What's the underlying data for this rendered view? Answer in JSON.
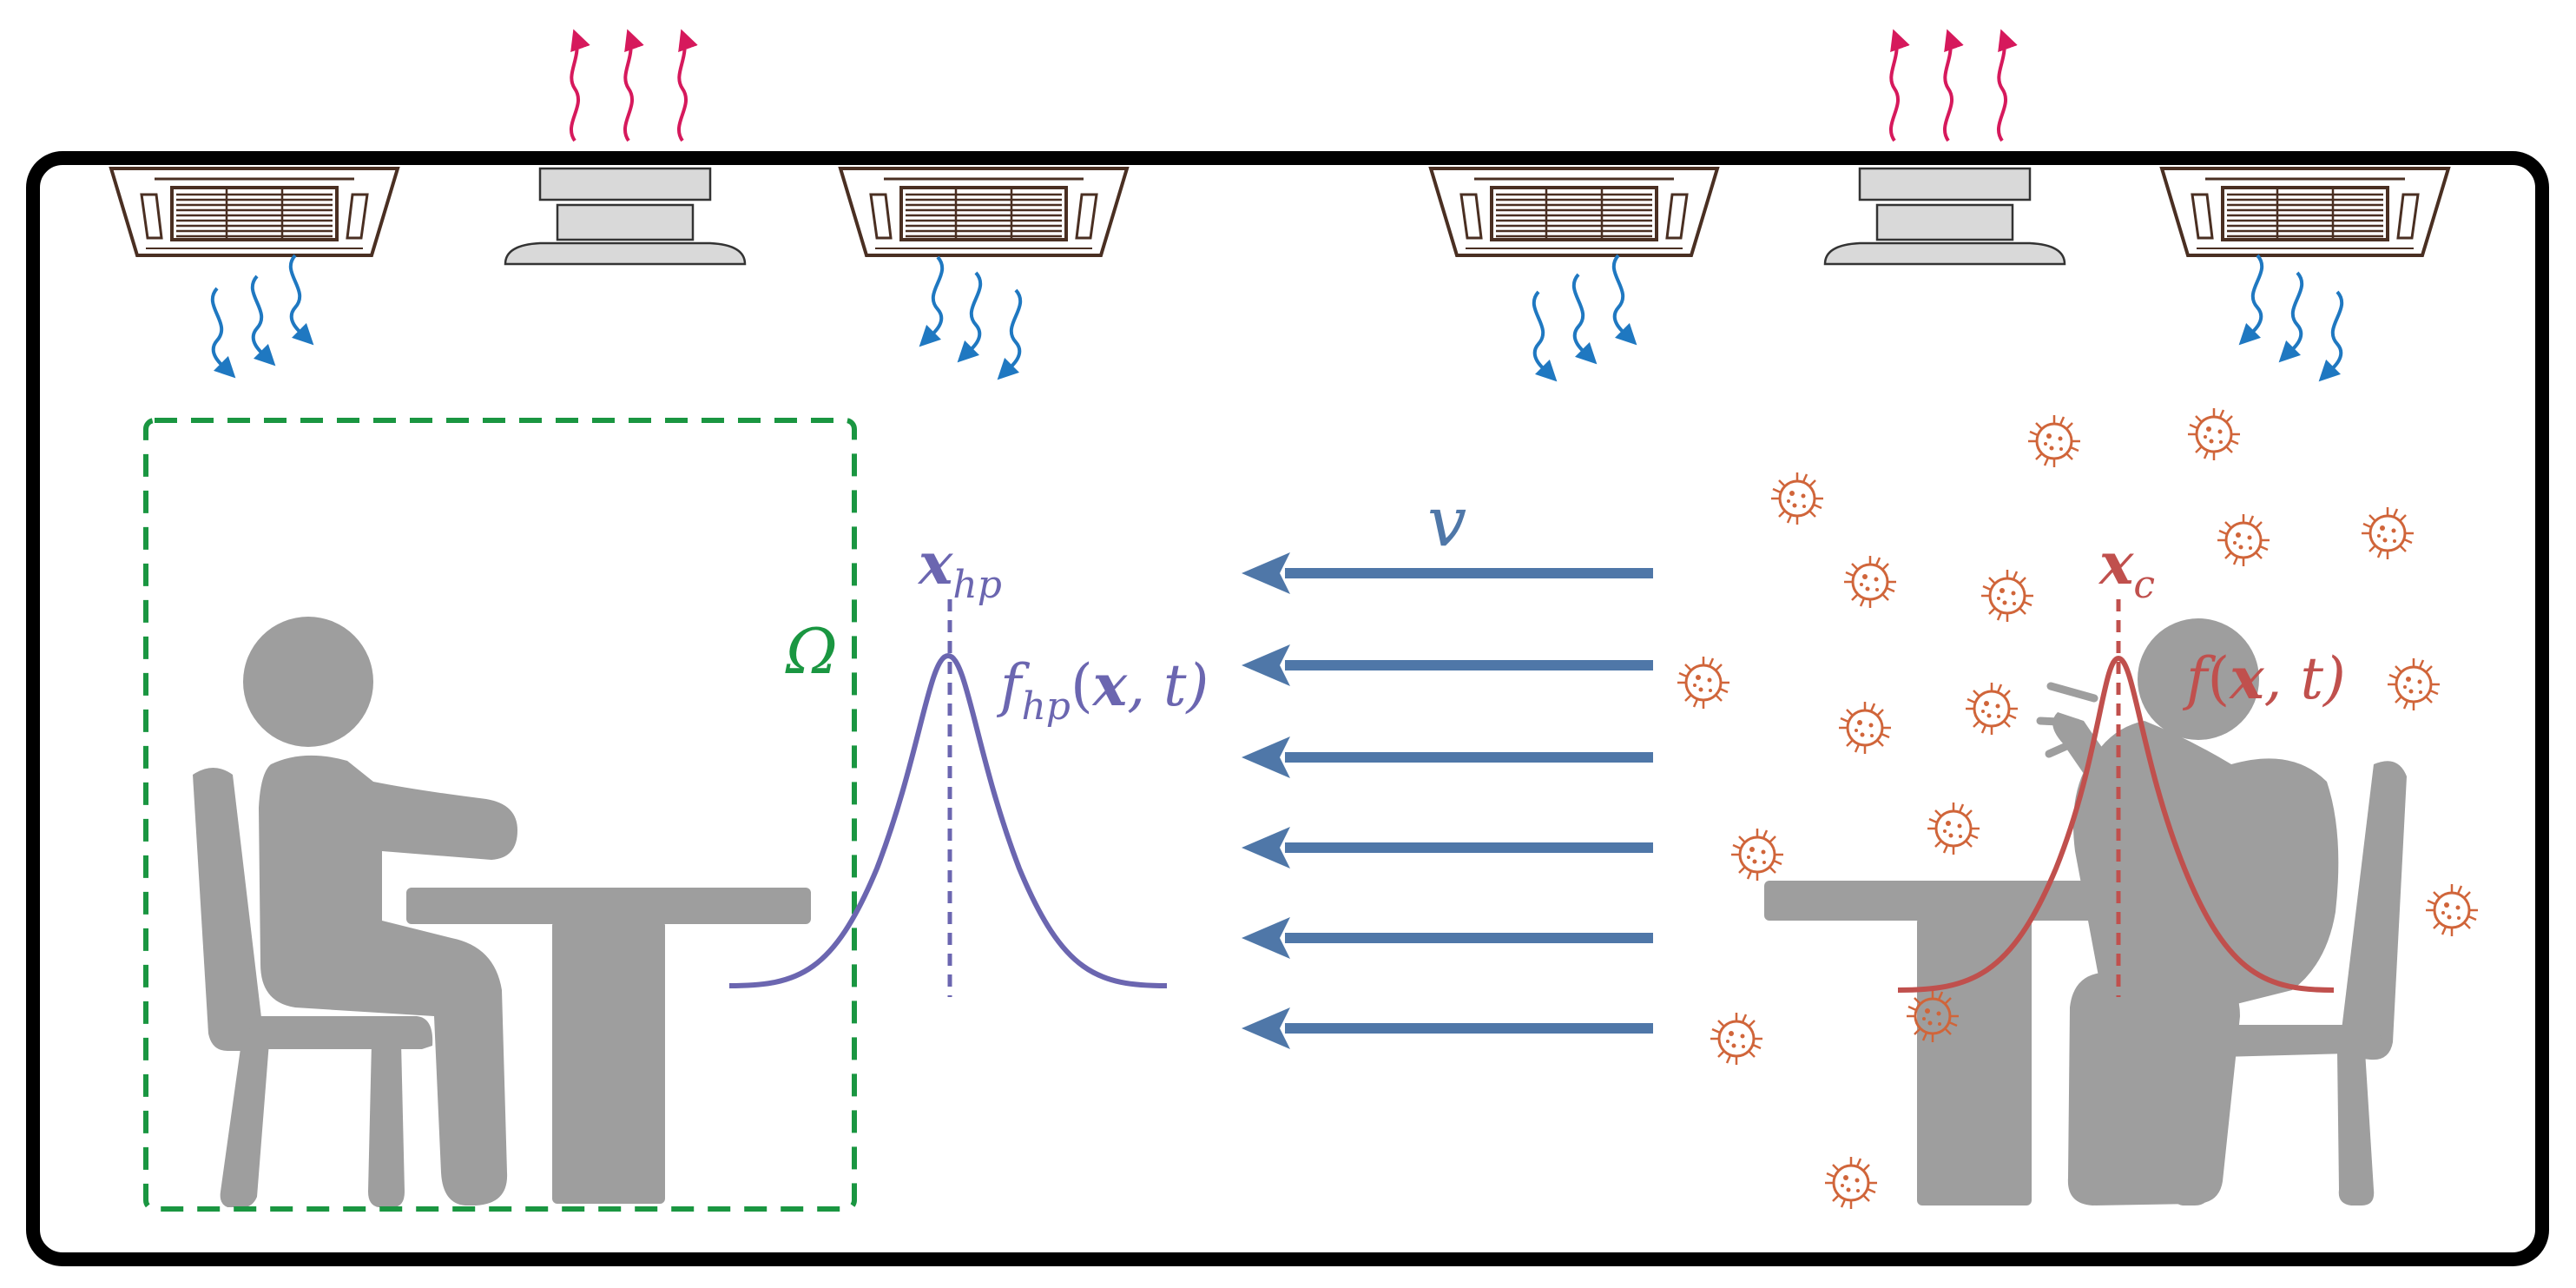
{
  "labels": {
    "omega": "Ω",
    "velocity": "v",
    "x_hp_base": "x",
    "x_hp_sub": "hp",
    "f_hp_base": "f",
    "f_hp_sub": "hp",
    "f_hp_args_open": "(",
    "f_hp_args_x": "x",
    "f_hp_args_rest": ", t)",
    "x_c_base": "x",
    "x_c_sub": "c",
    "f_c_base": "f",
    "f_c_args_open": "(",
    "f_c_args_x": "x",
    "f_c_args_rest": ", t)"
  },
  "colors": {
    "room_border": "#000000",
    "occupant": "#9e9e9e",
    "healthy_zone": "#1a9641",
    "healthy_curve": "#6b66b0",
    "infected_curve": "#c0504d",
    "virus": "#d0653a",
    "airflow_arrow": "#4f77a8",
    "ac_supply": "#1f78c1",
    "exhaust": "#d6195c",
    "ac_unit_outline": "#4a2f22",
    "exhaust_fan": "#d9d9d9"
  },
  "icons": {
    "ac_unit": "ceiling-cassette-ac-icon",
    "exhaust_fan": "ceiling-exhaust-fan-icon",
    "virus": "virus-icon",
    "healthy_person": "seated-person-icon",
    "infected_person": "coughing-person-icon"
  }
}
